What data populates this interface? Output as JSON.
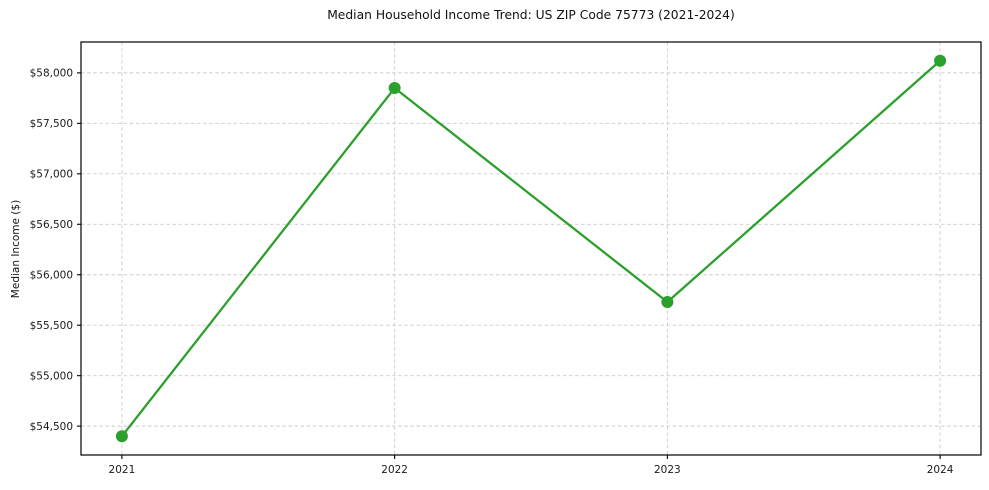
{
  "chart_data": {
    "type": "line",
    "title": "Median Household Income Trend: US ZIP Code 75773 (2021-2024)",
    "xlabel": "",
    "ylabel": "Median Income ($)",
    "x": [
      2021,
      2022,
      2023,
      2024
    ],
    "x_tick_labels": [
      "2021",
      "2022",
      "2023",
      "2024"
    ],
    "series": [
      {
        "values": [
          54400,
          57850,
          55730,
          58120
        ],
        "color": "#2ca02c",
        "marker": "circle"
      }
    ],
    "y_ticks": [
      54500,
      55000,
      55500,
      56000,
      56500,
      57000,
      57500,
      58000
    ],
    "y_tick_labels": [
      "$54,500",
      "$55,000",
      "$55,500",
      "$56,000",
      "$56,500",
      "$57,000",
      "$57,500",
      "$58,000"
    ],
    "xlim": [
      2020.85,
      2024.15
    ],
    "ylim": [
      54214,
      58306
    ],
    "grid": true,
    "grid_style": "dashed",
    "legend_position": "none",
    "colors": {
      "line": "#2ca02c",
      "grid": "#cccccc",
      "axis": "#000000",
      "text": "#1a1a1a",
      "background": "#ffffff"
    }
  }
}
